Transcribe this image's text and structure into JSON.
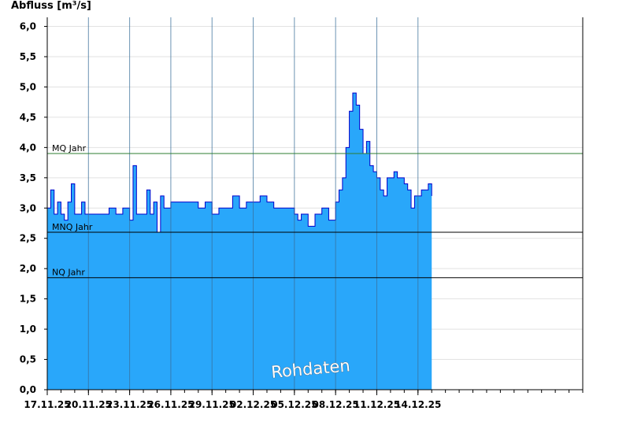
{
  "chart_data": {
    "type": "area",
    "ylabel": "Abfluss [m³/s]",
    "ylim": [
      0,
      6.15
    ],
    "yticks": [
      "0,0",
      "0,5",
      "1,0",
      "1,5",
      "2,0",
      "2,5",
      "3,0",
      "3,5",
      "4,0",
      "4,5",
      "5,0",
      "5,5",
      "6,0"
    ],
    "x_range_days": [
      "17.11.25",
      "26.12.25"
    ],
    "xticks": [
      "17.11.25",
      "20.11.25",
      "23.11.25",
      "26.11.25",
      "29.11.25",
      "02.12.25",
      "05.12.25",
      "08.12.25",
      "11.12.25",
      "14.12.25"
    ],
    "grid": true,
    "fill_color": "#29a7fa",
    "line_color": "#0000cc",
    "reference_lines": [
      {
        "name": "MQ Jahr",
        "value": 3.9,
        "color": "#2e7d32"
      },
      {
        "name": "MNQ Jahr",
        "value": 2.6,
        "color": "#000000"
      },
      {
        "name": "NQ Jahr",
        "value": 1.85,
        "color": "#000000"
      }
    ],
    "watermark": "Rohdaten",
    "series": [
      {
        "x": [
          "17.11.25",
          "17.11.25 06:00",
          "17.11.25 12:00",
          "17.11.25 18:00",
          "18.11.25",
          "18.11.25 06:00",
          "18.11.25 12:00",
          "18.11.25 18:00",
          "19.11.25",
          "19.11.25 06:00",
          "19.11.25 12:00",
          "19.11.25 18:00",
          "20.11.25",
          "20.11.25 12:00",
          "21.11.25",
          "21.11.25 12:00",
          "22.11.25",
          "22.11.25 12:00",
          "23.11.25",
          "23.11.25 06:00",
          "23.11.25 12:00",
          "24.11.25",
          "24.11.25 06:00",
          "24.11.25 12:00",
          "24.11.25 18:00",
          "25.11.25",
          "25.11.25 06:00",
          "25.11.25 12:00",
          "26.11.25",
          "26.11.25 12:00",
          "27.11.25",
          "27.11.25 12:00",
          "28.11.25",
          "28.11.25 12:00",
          "29.11.25",
          "29.11.25 12:00",
          "30.11.25",
          "30.11.25 12:00",
          "01.12.25",
          "01.12.25 12:00",
          "02.12.25",
          "02.12.25 12:00",
          "03.12.25",
          "03.12.25 12:00",
          "04.12.25",
          "04.12.25 12:00",
          "05.12.25",
          "05.12.25 06:00",
          "05.12.25 12:00",
          "06.12.25",
          "06.12.25 12:00",
          "07.12.25",
          "07.12.25 12:00",
          "08.12.25",
          "08.12.25 06:00",
          "08.12.25 12:00",
          "08.12.25 18:00",
          "09.12.25",
          "09.12.25 06:00",
          "09.12.25 12:00",
          "09.12.25 18:00",
          "10.12.25",
          "10.12.25 06:00",
          "10.12.25 12:00",
          "10.12.25 18:00",
          "11.12.25",
          "11.12.25 06:00",
          "11.12.25 12:00",
          "11.12.25 18:00",
          "12.12.25",
          "12.12.25 06:00",
          "12.12.25 12:00",
          "12.12.25 18:00",
          "13.12.25",
          "13.12.25 06:00",
          "13.12.25 12:00",
          "13.12.25 18:00",
          "14.12.25",
          "14.12.25 06:00",
          "14.12.25 12:00",
          "14.12.25 18:00",
          "15.12.25"
        ],
        "values": [
          3.0,
          3.3,
          2.9,
          3.1,
          2.9,
          2.8,
          3.1,
          3.4,
          2.9,
          2.9,
          3.1,
          2.9,
          2.9,
          2.9,
          2.9,
          3.0,
          2.9,
          3.0,
          2.8,
          3.7,
          2.9,
          2.9,
          3.3,
          2.9,
          3.1,
          2.6,
          3.2,
          3.0,
          3.1,
          3.1,
          3.1,
          3.1,
          3.0,
          3.1,
          2.9,
          3.0,
          3.0,
          3.2,
          3.0,
          3.1,
          3.1,
          3.2,
          3.1,
          3.0,
          3.0,
          3.0,
          2.9,
          2.8,
          2.9,
          2.7,
          2.9,
          3.0,
          2.8,
          3.1,
          3.3,
          3.5,
          4.0,
          4.6,
          4.9,
          4.7,
          4.3,
          3.9,
          4.1,
          3.7,
          3.6,
          3.5,
          3.3,
          3.2,
          3.5,
          3.5,
          3.6,
          3.5,
          3.5,
          3.4,
          3.3,
          3.0,
          3.2,
          3.2,
          3.3,
          3.3,
          3.4,
          3.2
        ]
      }
    ]
  }
}
